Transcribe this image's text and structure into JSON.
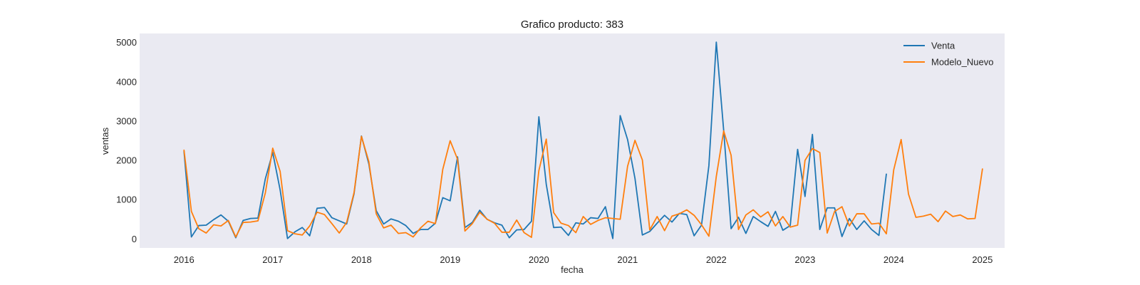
{
  "chart_data": {
    "type": "line",
    "title": "Grafico producto: 383",
    "xlabel": "fecha",
    "ylabel": "ventas",
    "x_start": "2016-01",
    "x_ticks": [
      "2016",
      "2017",
      "2018",
      "2019",
      "2020",
      "2021",
      "2022",
      "2023",
      "2024",
      "2025"
    ],
    "y_ticks": [
      0,
      1000,
      2000,
      3000,
      4000,
      5000
    ],
    "xlim": [
      "2015-07",
      "2025-04"
    ],
    "ylim": [
      -230,
      5230
    ],
    "grid": false,
    "legend_position": "top-right",
    "background": "#eaeaf2",
    "series": [
      {
        "name": "Venta",
        "color": "#1f77b4",
        "values": [
          2230,
          50,
          340,
          350,
          490,
          610,
          450,
          30,
          470,
          520,
          530,
          1530,
          2200,
          1250,
          10,
          180,
          290,
          80,
          780,
          800,
          540,
          460,
          380,
          1150,
          2620,
          1910,
          720,
          380,
          510,
          450,
          340,
          140,
          240,
          240,
          400,
          1050,
          970,
          2090,
          290,
          420,
          730,
          500,
          410,
          350,
          30,
          230,
          240,
          450,
          3110,
          1390,
          290,
          300,
          90,
          410,
          380,
          540,
          520,
          820,
          10,
          3140,
          2530,
          1540,
          100,
          190,
          400,
          600,
          430,
          650,
          620,
          80,
          350,
          1870,
          5010,
          2760,
          260,
          550,
          140,
          570,
          440,
          320,
          700,
          220,
          340,
          2280,
          1080,
          2660,
          240,
          790,
          790,
          60,
          520,
          240,
          460,
          240,
          90,
          1650
        ],
        "total_points": 96
      },
      {
        "name": "Modelo_Nuevo",
        "color": "#ff7f0e",
        "values": [
          2260,
          700,
          260,
          150,
          360,
          330,
          470,
          50,
          420,
          430,
          460,
          1170,
          2310,
          1720,
          210,
          130,
          100,
          330,
          680,
          620,
          390,
          150,
          420,
          1180,
          2610,
          1970,
          640,
          280,
          350,
          140,
          160,
          50,
          280,
          450,
          390,
          1770,
          2500,
          2030,
          200,
          390,
          680,
          500,
          400,
          170,
          170,
          480,
          160,
          40,
          1740,
          2540,
          670,
          400,
          340,
          160,
          570,
          370,
          470,
          540,
          520,
          500,
          1850,
          2510,
          2010,
          230,
          570,
          210,
          580,
          640,
          740,
          600,
          360,
          70,
          1590,
          2750,
          2130,
          240,
          610,
          740,
          560,
          690,
          330,
          570,
          300,
          350,
          2000,
          2300,
          2200,
          150,
          700,
          820,
          330,
          640,
          640,
          380,
          400,
          130,
          1760,
          2530,
          1140,
          550,
          580,
          630,
          440,
          710,
          570,
          610,
          510,
          520,
          1780
        ]
      }
    ]
  }
}
